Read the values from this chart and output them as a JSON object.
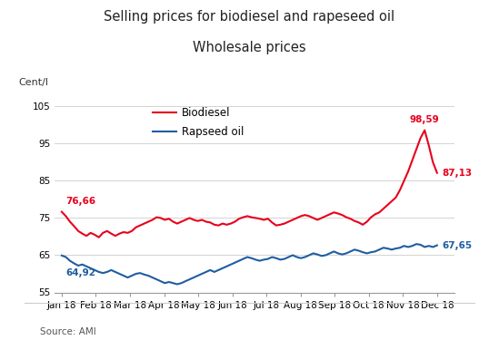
{
  "title_line1": "Selling prices for biodiesel and rapeseed oil",
  "title_line2": "Wholesale prices",
  "ylabel": "Cent/l",
  "source": "Source: AMI",
  "x_labels": [
    "Jan 18",
    "Feb 18",
    "Mar 18",
    "Apr 18",
    "May 18",
    "Jun 18",
    "Jul 18",
    "Aug 18",
    "Sep 18",
    "Oct 18",
    "Nov 18",
    "Dec 18"
  ],
  "ylim": [
    55,
    108
  ],
  "yticks": [
    55,
    65,
    75,
    85,
    95,
    105
  ],
  "biodiesel_color": "#e8001c",
  "rapeseed_color": "#1f5da0",
  "background_color": "#ffffff",
  "biodiesel_first_label": "76,66",
  "biodiesel_peak_label": "98,59",
  "biodiesel_last_label": "87,13",
  "rapeseed_first_label": "64,92",
  "rapeseed_last_label": "67,65",
  "biodiesel_values": [
    76.66,
    75.5,
    74.0,
    72.8,
    71.5,
    70.8,
    70.2,
    71.0,
    70.5,
    69.8,
    71.0,
    71.5,
    70.8,
    70.2,
    70.8,
    71.2,
    71.0,
    71.5,
    72.5,
    73.0,
    73.5,
    74.0,
    74.5,
    75.2,
    75.0,
    74.5,
    74.8,
    74.0,
    73.5,
    74.0,
    74.5,
    75.0,
    74.5,
    74.2,
    74.5,
    74.0,
    73.8,
    73.2,
    73.0,
    73.5,
    73.2,
    73.5,
    74.0,
    74.8,
    75.2,
    75.5,
    75.2,
    75.0,
    74.8,
    74.5,
    74.8,
    73.8,
    73.0,
    73.2,
    73.5,
    74.0,
    74.5,
    75.0,
    75.5,
    75.8,
    75.5,
    75.0,
    74.5,
    75.0,
    75.5,
    76.0,
    76.5,
    76.2,
    75.8,
    75.2,
    74.8,
    74.2,
    73.8,
    73.2,
    74.0,
    75.2,
    76.0,
    76.5,
    77.5,
    78.5,
    79.5,
    80.5,
    82.5,
    85.0,
    87.5,
    90.5,
    93.5,
    96.5,
    98.59,
    94.5,
    90.0,
    87.13
  ],
  "rapeseed_values": [
    64.92,
    64.5,
    63.5,
    62.8,
    62.2,
    62.5,
    62.0,
    61.5,
    61.0,
    60.5,
    60.2,
    60.5,
    61.0,
    60.5,
    60.0,
    59.5,
    59.0,
    59.5,
    60.0,
    60.2,
    59.8,
    59.5,
    59.0,
    58.5,
    58.0,
    57.5,
    57.8,
    57.5,
    57.2,
    57.5,
    58.0,
    58.5,
    59.0,
    59.5,
    60.0,
    60.5,
    61.0,
    60.5,
    61.0,
    61.5,
    62.0,
    62.5,
    63.0,
    63.5,
    64.0,
    64.5,
    64.2,
    63.8,
    63.5,
    63.8,
    64.0,
    64.5,
    64.2,
    63.8,
    64.0,
    64.5,
    65.0,
    64.5,
    64.2,
    64.5,
    65.0,
    65.5,
    65.2,
    64.8,
    65.0,
    65.5,
    66.0,
    65.5,
    65.2,
    65.5,
    66.0,
    66.5,
    66.2,
    65.8,
    65.5,
    65.8,
    66.0,
    66.5,
    67.0,
    66.8,
    66.5,
    66.8,
    67.0,
    67.5,
    67.2,
    67.5,
    68.0,
    67.8,
    67.2,
    67.5,
    67.2,
    67.65
  ]
}
